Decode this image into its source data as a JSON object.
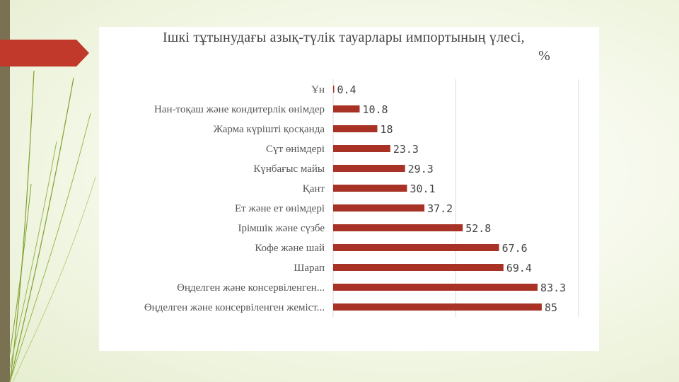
{
  "theme": {
    "accent_red": "#c0392b",
    "band_color": "#7a7152",
    "bar_color": "#a93226",
    "grid_color": "#d9d9d9"
  },
  "chart_data": {
    "type": "bar",
    "orientation": "horizontal",
    "title_line1": "Ішкі тұтынудағы азық-түлік тауарлары импортының үлесі,",
    "title_line2": "%",
    "xlabel": "",
    "ylabel": "",
    "xlim": [
      0,
      100
    ],
    "grid": true,
    "categories": [
      "Ұн",
      "Нан-тоқаш және кондитерлік өнімдер",
      "Жарма күрішті қосқанда",
      "Сүт өнімдері",
      "Күнбағыс майы",
      "Қант",
      "Ет және ет өнімдері",
      "Ірімшік және сүзбе",
      "Кофе және шай",
      "Шарап",
      "Өңделген және консервіленген...",
      "Өңделген және консервіленген жеміст..."
    ],
    "values": [
      0.4,
      10.8,
      18,
      23.3,
      29.3,
      30.1,
      37.2,
      52.8,
      67.6,
      69.4,
      83.3,
      85
    ],
    "value_labels": [
      "0.4",
      "10.8",
      "18",
      "23.3",
      "29.3",
      "30.1",
      "37.2",
      "52.8",
      "67.6",
      "69.4",
      "83.3",
      "85"
    ]
  }
}
